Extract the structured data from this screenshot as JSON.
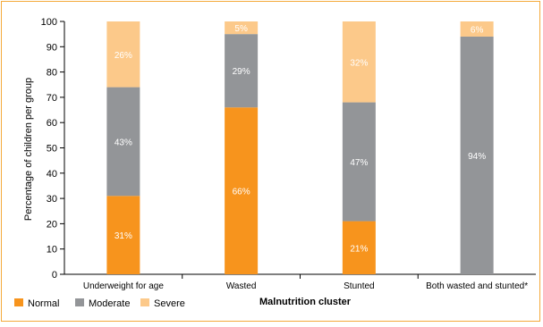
{
  "chart_data": {
    "type": "bar",
    "stacked": true,
    "title": "",
    "xlabel": "Malnutrition cluster",
    "ylabel": "Percentage of children per group",
    "ylim": [
      0,
      100
    ],
    "yticks": [
      "0",
      "10",
      "20",
      "30",
      "40",
      "50",
      "60",
      "70",
      "80",
      "90",
      "100"
    ],
    "categories": [
      "Underweight for age",
      "Wasted",
      "Stunted",
      "Both wasted and stunted*"
    ],
    "series": [
      {
        "name": "Normal",
        "color": "#f7941d",
        "values": [
          31,
          66,
          21,
          0
        ],
        "labels": [
          "31%",
          "66%",
          "21%",
          ""
        ]
      },
      {
        "name": "Moderate",
        "color": "#939598",
        "values": [
          43,
          29,
          47,
          94
        ],
        "labels": [
          "43%",
          "29%",
          "47%",
          "94%"
        ]
      },
      {
        "name": "Severe",
        "color": "#fcc98a",
        "values": [
          26,
          5,
          32,
          6
        ],
        "labels": [
          "26%",
          "5%",
          "32%",
          "6%"
        ]
      }
    ],
    "grid": false,
    "legend_position": "bottom-left"
  }
}
